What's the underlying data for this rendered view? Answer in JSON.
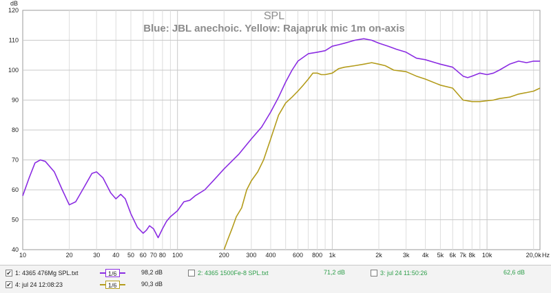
{
  "chart_data": {
    "type": "line",
    "title": "SPL",
    "subtitle": "Blue: JBL anechoic. Yellow: Rajapruk mic 1m on-axis",
    "ylabel": "dB",
    "xscale": "log",
    "xlim": [
      10,
      22000
    ],
    "ylim": [
      40,
      120
    ],
    "yticks": [
      "40",
      "50",
      "60",
      "70",
      "80",
      "90",
      "100",
      "110",
      "120"
    ],
    "xticks": [
      {
        "v": 10,
        "l": "10"
      },
      {
        "v": 20,
        "l": "20"
      },
      {
        "v": 30,
        "l": "30"
      },
      {
        "v": 40,
        "l": "40"
      },
      {
        "v": 50,
        "l": "50"
      },
      {
        "v": 60,
        "l": "60"
      },
      {
        "v": 70,
        "l": "70"
      },
      {
        "v": 80,
        "l": "80"
      },
      {
        "v": 100,
        "l": "100"
      },
      {
        "v": 200,
        "l": "200"
      },
      {
        "v": 300,
        "l": "300"
      },
      {
        "v": 400,
        "l": "400"
      },
      {
        "v": 600,
        "l": "600"
      },
      {
        "v": 800,
        "l": "800"
      },
      {
        "v": 1000,
        "l": "1k"
      },
      {
        "v": 2000,
        "l": "2k"
      },
      {
        "v": 3000,
        "l": "3k"
      },
      {
        "v": 4000,
        "l": "4k"
      },
      {
        "v": 5000,
        "l": "5k"
      },
      {
        "v": 6000,
        "l": "6k"
      },
      {
        "v": 7000,
        "l": "7k"
      },
      {
        "v": 8000,
        "l": "8k"
      },
      {
        "v": 10000,
        "l": "10k"
      },
      {
        "v": 20000,
        "l": "20,0k"
      }
    ],
    "x_unit": "Hz",
    "grid": true,
    "series": [
      {
        "name": "1: 4365 476Mg SPL.txt",
        "color": "#8a2be2",
        "points": [
          [
            10,
            58
          ],
          [
            11,
            64
          ],
          [
            12,
            69
          ],
          [
            13,
            70
          ],
          [
            14,
            69.5
          ],
          [
            16,
            66
          ],
          [
            18,
            60
          ],
          [
            20,
            55
          ],
          [
            22,
            56
          ],
          [
            25,
            61
          ],
          [
            28,
            65.5
          ],
          [
            30,
            66
          ],
          [
            33,
            64
          ],
          [
            37,
            59
          ],
          [
            40,
            57
          ],
          [
            43,
            58.5
          ],
          [
            46,
            57
          ],
          [
            50,
            52
          ],
          [
            55,
            47.5
          ],
          [
            60,
            45.5
          ],
          [
            63,
            46.5
          ],
          [
            66,
            48
          ],
          [
            70,
            47
          ],
          [
            75,
            44
          ],
          [
            80,
            47
          ],
          [
            85,
            49.5
          ],
          [
            90,
            51
          ],
          [
            100,
            53
          ],
          [
            110,
            56
          ],
          [
            120,
            56.5
          ],
          [
            130,
            58
          ],
          [
            150,
            60
          ],
          [
            170,
            63
          ],
          [
            200,
            67
          ],
          [
            250,
            72
          ],
          [
            300,
            77
          ],
          [
            350,
            81
          ],
          [
            400,
            86
          ],
          [
            450,
            91
          ],
          [
            500,
            96
          ],
          [
            550,
            100
          ],
          [
            600,
            103
          ],
          [
            700,
            105.5
          ],
          [
            800,
            106
          ],
          [
            900,
            106.5
          ],
          [
            1000,
            108
          ],
          [
            1100,
            108.5
          ],
          [
            1200,
            109
          ],
          [
            1400,
            110
          ],
          [
            1600,
            110.5
          ],
          [
            1800,
            110
          ],
          [
            2000,
            109
          ],
          [
            2300,
            108
          ],
          [
            2600,
            107
          ],
          [
            3000,
            106
          ],
          [
            3500,
            104
          ],
          [
            4000,
            103.5
          ],
          [
            5000,
            102
          ],
          [
            6000,
            101
          ],
          [
            7000,
            98
          ],
          [
            7500,
            97.5
          ],
          [
            8000,
            98
          ],
          [
            9000,
            99
          ],
          [
            10000,
            98.5
          ],
          [
            11000,
            99
          ],
          [
            12000,
            100
          ],
          [
            14000,
            102
          ],
          [
            16000,
            103
          ],
          [
            18000,
            102.5
          ],
          [
            20000,
            103
          ],
          [
            22000,
            103
          ]
        ]
      },
      {
        "name": "4: jul 24 12:08:23",
        "color": "#b39b1a",
        "points": [
          [
            200,
            40
          ],
          [
            210,
            43
          ],
          [
            225,
            47
          ],
          [
            240,
            51
          ],
          [
            260,
            54
          ],
          [
            280,
            60
          ],
          [
            300,
            63
          ],
          [
            330,
            66
          ],
          [
            360,
            70
          ],
          [
            400,
            77
          ],
          [
            450,
            85
          ],
          [
            500,
            89
          ],
          [
            550,
            91
          ],
          [
            600,
            93
          ],
          [
            650,
            95
          ],
          [
            700,
            97
          ],
          [
            750,
            99
          ],
          [
            800,
            99
          ],
          [
            850,
            98.5
          ],
          [
            900,
            98.5
          ],
          [
            1000,
            99
          ],
          [
            1100,
            100.5
          ],
          [
            1200,
            101
          ],
          [
            1400,
            101.5
          ],
          [
            1600,
            102
          ],
          [
            1800,
            102.5
          ],
          [
            2000,
            102
          ],
          [
            2200,
            101.5
          ],
          [
            2500,
            100
          ],
          [
            3000,
            99.5
          ],
          [
            3500,
            98
          ],
          [
            4000,
            97
          ],
          [
            5000,
            95
          ],
          [
            6000,
            94
          ],
          [
            7000,
            90
          ],
          [
            8000,
            89.5
          ],
          [
            9000,
            89.5
          ],
          [
            10000,
            89.8
          ],
          [
            11000,
            90
          ],
          [
            12000,
            90.5
          ],
          [
            14000,
            91
          ],
          [
            16000,
            92
          ],
          [
            18000,
            92.5
          ],
          [
            20000,
            93
          ],
          [
            22000,
            94
          ]
        ]
      }
    ]
  },
  "legend": {
    "items": [
      {
        "checked": true,
        "mark": "✔",
        "label": "1: 4365 476Mg SPL.txt",
        "label_color": "#222222",
        "smoothing": "1/6",
        "smooth_color": "#8a2be2",
        "value": "98,2 dB"
      },
      {
        "checked": false,
        "mark": "",
        "label": "2: 4365 1500Fe-8 SPL.txt",
        "label_color": "#2e9e4a",
        "value": "71,2 dB",
        "value_color": "#2e9e4a"
      },
      {
        "checked": false,
        "mark": "",
        "label": "3: jul 24 11:50:26",
        "label_color": "#2e9e4a",
        "value": "62,6 dB",
        "value_color": "#2e9e4a"
      },
      {
        "checked": true,
        "mark": "✔",
        "label": "4: jul 24 12:08:23",
        "label_color": "#222222",
        "smoothing": "1/6",
        "smooth_color": "#b39b1a",
        "value": "90,3 dB"
      }
    ]
  }
}
